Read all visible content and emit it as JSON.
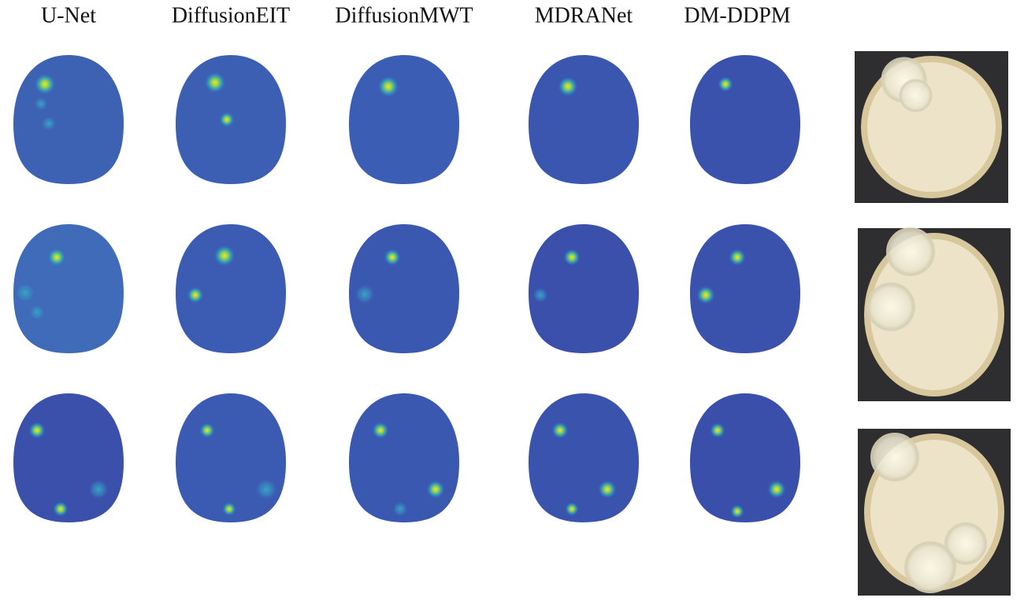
{
  "columns": [
    "U-Net",
    "DiffusionEIT",
    "DiffusionMWT",
    "MDRANet",
    "DM-DDPM"
  ]
}
